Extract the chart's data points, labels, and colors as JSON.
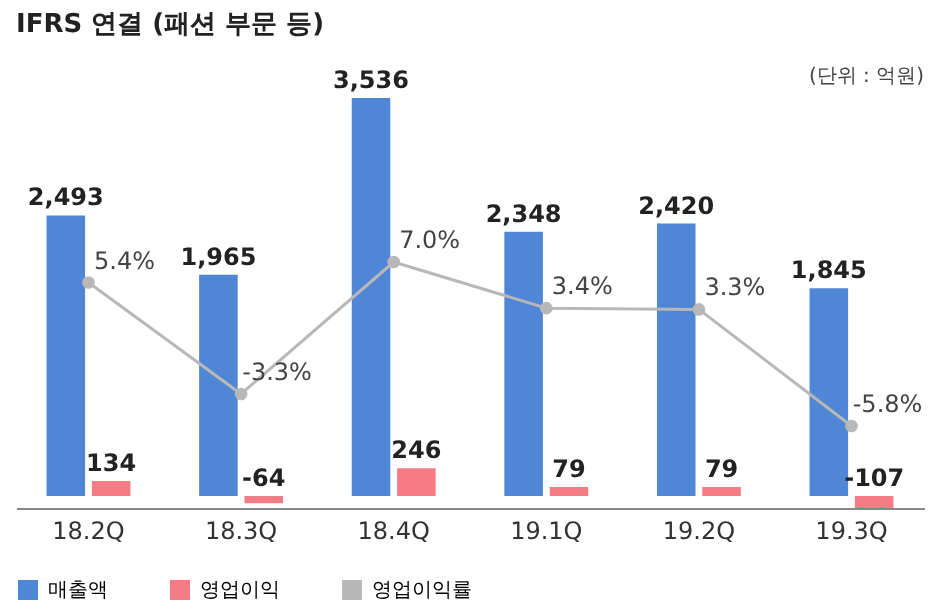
{
  "chart_data": {
    "type": "bar",
    "title": "IFRS 연결 (패션 부문 등)",
    "annotations": [
      "(단위 : 억원)"
    ],
    "categories": [
      "18.2Q",
      "18.3Q",
      "18.4Q",
      "19.1Q",
      "19.2Q",
      "19.3Q"
    ],
    "series": [
      {
        "name": "매출액",
        "color": "#4f86d6",
        "values": [
          2493,
          1965,
          3536,
          2348,
          2420,
          1845
        ],
        "value_labels": [
          "2,493",
          "1,965",
          "3,536",
          "2,348",
          "2,420",
          "1,845"
        ]
      },
      {
        "name": "영업이익",
        "color": "#f47c84",
        "values": [
          134,
          -64,
          246,
          79,
          79,
          -107
        ],
        "value_labels": [
          "134",
          "-64",
          "246",
          "79",
          "79",
          "-107"
        ]
      },
      {
        "name": "영업이익률",
        "color": "#b8b8b8",
        "type": "line",
        "axis": "y2",
        "values": [
          5.4,
          -3.3,
          7.0,
          3.4,
          3.3,
          -5.8
        ],
        "value_labels": [
          "5.4%",
          "-3.3%",
          "7.0%",
          "3.4%",
          "3.3%",
          "-5.8%"
        ]
      }
    ],
    "legend": "bottom",
    "marker": "circle",
    "grid": false,
    "tick_labels": "x"
  }
}
